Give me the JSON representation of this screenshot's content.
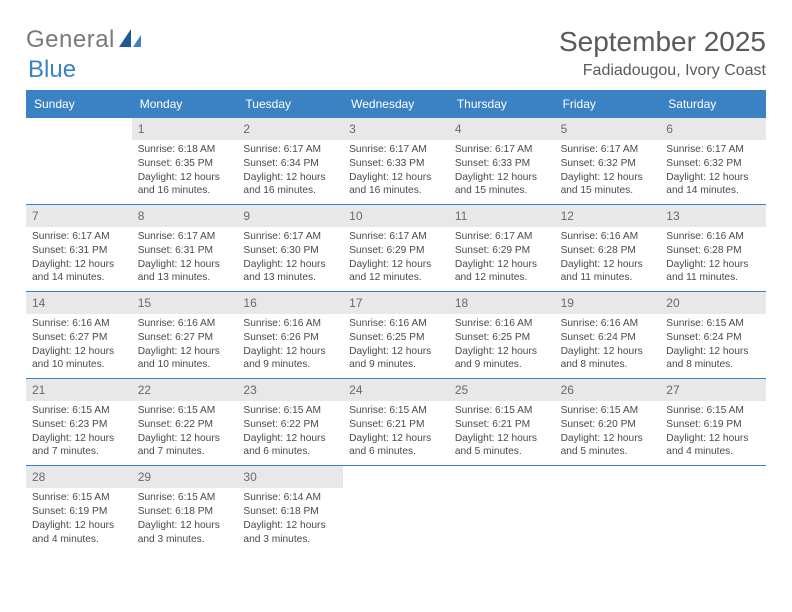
{
  "logo": {
    "part1": "General",
    "part2": "Blue"
  },
  "title": "September 2025",
  "location": "Fadiadougou, Ivory Coast",
  "day_names": [
    "Sunday",
    "Monday",
    "Tuesday",
    "Wednesday",
    "Thursday",
    "Friday",
    "Saturday"
  ],
  "colors": {
    "header_bg": "#3b82c4",
    "daynum_bg": "#e8e8e8",
    "text": "#4a4a4a",
    "border": "#3b82c4"
  },
  "typography": {
    "title_fontsize": 28,
    "location_fontsize": 16,
    "dayheader_fontsize": 12,
    "daynum_fontsize": 12,
    "detail_fontsize": 10.2
  },
  "weeks": [
    [
      {
        "empty": true
      },
      {
        "day": "1",
        "sunrise": "Sunrise: 6:18 AM",
        "sunset": "Sunset: 6:35 PM",
        "daylight": "Daylight: 12 hours and 16 minutes."
      },
      {
        "day": "2",
        "sunrise": "Sunrise: 6:17 AM",
        "sunset": "Sunset: 6:34 PM",
        "daylight": "Daylight: 12 hours and 16 minutes."
      },
      {
        "day": "3",
        "sunrise": "Sunrise: 6:17 AM",
        "sunset": "Sunset: 6:33 PM",
        "daylight": "Daylight: 12 hours and 16 minutes."
      },
      {
        "day": "4",
        "sunrise": "Sunrise: 6:17 AM",
        "sunset": "Sunset: 6:33 PM",
        "daylight": "Daylight: 12 hours and 15 minutes."
      },
      {
        "day": "5",
        "sunrise": "Sunrise: 6:17 AM",
        "sunset": "Sunset: 6:32 PM",
        "daylight": "Daylight: 12 hours and 15 minutes."
      },
      {
        "day": "6",
        "sunrise": "Sunrise: 6:17 AM",
        "sunset": "Sunset: 6:32 PM",
        "daylight": "Daylight: 12 hours and 14 minutes."
      }
    ],
    [
      {
        "day": "7",
        "sunrise": "Sunrise: 6:17 AM",
        "sunset": "Sunset: 6:31 PM",
        "daylight": "Daylight: 12 hours and 14 minutes."
      },
      {
        "day": "8",
        "sunrise": "Sunrise: 6:17 AM",
        "sunset": "Sunset: 6:31 PM",
        "daylight": "Daylight: 12 hours and 13 minutes."
      },
      {
        "day": "9",
        "sunrise": "Sunrise: 6:17 AM",
        "sunset": "Sunset: 6:30 PM",
        "daylight": "Daylight: 12 hours and 13 minutes."
      },
      {
        "day": "10",
        "sunrise": "Sunrise: 6:17 AM",
        "sunset": "Sunset: 6:29 PM",
        "daylight": "Daylight: 12 hours and 12 minutes."
      },
      {
        "day": "11",
        "sunrise": "Sunrise: 6:17 AM",
        "sunset": "Sunset: 6:29 PM",
        "daylight": "Daylight: 12 hours and 12 minutes."
      },
      {
        "day": "12",
        "sunrise": "Sunrise: 6:16 AM",
        "sunset": "Sunset: 6:28 PM",
        "daylight": "Daylight: 12 hours and 11 minutes."
      },
      {
        "day": "13",
        "sunrise": "Sunrise: 6:16 AM",
        "sunset": "Sunset: 6:28 PM",
        "daylight": "Daylight: 12 hours and 11 minutes."
      }
    ],
    [
      {
        "day": "14",
        "sunrise": "Sunrise: 6:16 AM",
        "sunset": "Sunset: 6:27 PM",
        "daylight": "Daylight: 12 hours and 10 minutes."
      },
      {
        "day": "15",
        "sunrise": "Sunrise: 6:16 AM",
        "sunset": "Sunset: 6:27 PM",
        "daylight": "Daylight: 12 hours and 10 minutes."
      },
      {
        "day": "16",
        "sunrise": "Sunrise: 6:16 AM",
        "sunset": "Sunset: 6:26 PM",
        "daylight": "Daylight: 12 hours and 9 minutes."
      },
      {
        "day": "17",
        "sunrise": "Sunrise: 6:16 AM",
        "sunset": "Sunset: 6:25 PM",
        "daylight": "Daylight: 12 hours and 9 minutes."
      },
      {
        "day": "18",
        "sunrise": "Sunrise: 6:16 AM",
        "sunset": "Sunset: 6:25 PM",
        "daylight": "Daylight: 12 hours and 9 minutes."
      },
      {
        "day": "19",
        "sunrise": "Sunrise: 6:16 AM",
        "sunset": "Sunset: 6:24 PM",
        "daylight": "Daylight: 12 hours and 8 minutes."
      },
      {
        "day": "20",
        "sunrise": "Sunrise: 6:15 AM",
        "sunset": "Sunset: 6:24 PM",
        "daylight": "Daylight: 12 hours and 8 minutes."
      }
    ],
    [
      {
        "day": "21",
        "sunrise": "Sunrise: 6:15 AM",
        "sunset": "Sunset: 6:23 PM",
        "daylight": "Daylight: 12 hours and 7 minutes."
      },
      {
        "day": "22",
        "sunrise": "Sunrise: 6:15 AM",
        "sunset": "Sunset: 6:22 PM",
        "daylight": "Daylight: 12 hours and 7 minutes."
      },
      {
        "day": "23",
        "sunrise": "Sunrise: 6:15 AM",
        "sunset": "Sunset: 6:22 PM",
        "daylight": "Daylight: 12 hours and 6 minutes."
      },
      {
        "day": "24",
        "sunrise": "Sunrise: 6:15 AM",
        "sunset": "Sunset: 6:21 PM",
        "daylight": "Daylight: 12 hours and 6 minutes."
      },
      {
        "day": "25",
        "sunrise": "Sunrise: 6:15 AM",
        "sunset": "Sunset: 6:21 PM",
        "daylight": "Daylight: 12 hours and 5 minutes."
      },
      {
        "day": "26",
        "sunrise": "Sunrise: 6:15 AM",
        "sunset": "Sunset: 6:20 PM",
        "daylight": "Daylight: 12 hours and 5 minutes."
      },
      {
        "day": "27",
        "sunrise": "Sunrise: 6:15 AM",
        "sunset": "Sunset: 6:19 PM",
        "daylight": "Daylight: 12 hours and 4 minutes."
      }
    ],
    [
      {
        "day": "28",
        "sunrise": "Sunrise: 6:15 AM",
        "sunset": "Sunset: 6:19 PM",
        "daylight": "Daylight: 12 hours and 4 minutes."
      },
      {
        "day": "29",
        "sunrise": "Sunrise: 6:15 AM",
        "sunset": "Sunset: 6:18 PM",
        "daylight": "Daylight: 12 hours and 3 minutes."
      },
      {
        "day": "30",
        "sunrise": "Sunrise: 6:14 AM",
        "sunset": "Sunset: 6:18 PM",
        "daylight": "Daylight: 12 hours and 3 minutes."
      },
      {
        "empty": true
      },
      {
        "empty": true
      },
      {
        "empty": true
      },
      {
        "empty": true
      }
    ]
  ]
}
